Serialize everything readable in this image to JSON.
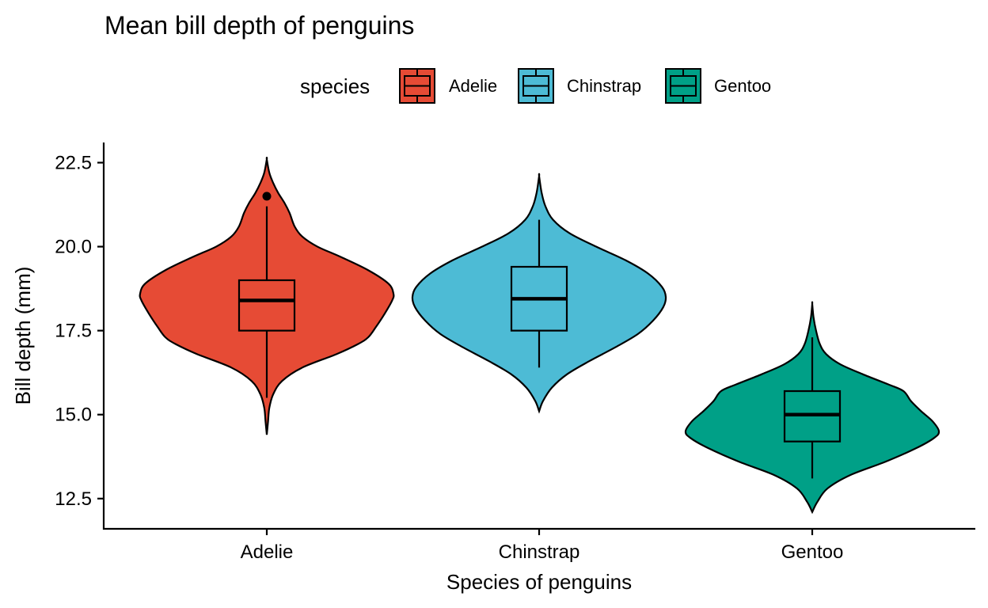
{
  "chart_data": {
    "type": "violin",
    "title": "Mean bill depth of penguins",
    "xlabel": "Species of penguins",
    "ylabel": "Bill depth (mm)",
    "ylim": [
      11.6,
      23.1
    ],
    "yticks": [
      12.5,
      15.0,
      17.5,
      20.0,
      22.5
    ],
    "ytick_labels": [
      "12.5",
      "15.0",
      "17.5",
      "20.0",
      "22.5"
    ],
    "categories": [
      "Adelie",
      "Chinstrap",
      "Gentoo"
    ],
    "legend": {
      "title": "species",
      "position": "top",
      "entries": [
        "Adelie",
        "Chinstrap",
        "Gentoo"
      ]
    },
    "series": [
      {
        "category": "Adelie",
        "color": "#E64B35",
        "box": {
          "whisker_low": 15.5,
          "q1": 17.5,
          "median": 18.4,
          "q3": 19.0,
          "whisker_high": 21.2
        },
        "outliers": [
          21.5
        ],
        "density": [
          [
            14.4,
            0.0
          ],
          [
            14.8,
            0.01
          ],
          [
            15.2,
            0.02
          ],
          [
            15.6,
            0.05
          ],
          [
            16.0,
            0.12
          ],
          [
            16.4,
            0.28
          ],
          [
            16.8,
            0.55
          ],
          [
            17.1,
            0.72
          ],
          [
            17.3,
            0.8
          ],
          [
            17.6,
            0.86
          ],
          [
            18.0,
            0.93
          ],
          [
            18.4,
            0.99
          ],
          [
            18.6,
            1.0
          ],
          [
            18.9,
            0.96
          ],
          [
            19.3,
            0.8
          ],
          [
            19.7,
            0.58
          ],
          [
            20.0,
            0.4
          ],
          [
            20.3,
            0.28
          ],
          [
            20.6,
            0.22
          ],
          [
            21.0,
            0.18
          ],
          [
            21.3,
            0.14
          ],
          [
            21.6,
            0.09
          ],
          [
            21.9,
            0.05
          ],
          [
            22.2,
            0.02
          ],
          [
            22.6,
            0.0
          ]
        ]
      },
      {
        "category": "Chinstrap",
        "color": "#4DBBD5",
        "box": {
          "whisker_low": 16.4,
          "q1": 17.5,
          "median": 18.45,
          "q3": 19.4,
          "whisker_high": 20.8
        },
        "outliers": [],
        "density": [
          [
            15.1,
            0.0
          ],
          [
            15.4,
            0.03
          ],
          [
            15.8,
            0.1
          ],
          [
            16.2,
            0.22
          ],
          [
            16.6,
            0.4
          ],
          [
            17.0,
            0.6
          ],
          [
            17.4,
            0.78
          ],
          [
            17.8,
            0.9
          ],
          [
            18.2,
            0.98
          ],
          [
            18.5,
            1.0
          ],
          [
            18.8,
            0.97
          ],
          [
            19.2,
            0.86
          ],
          [
            19.6,
            0.68
          ],
          [
            20.0,
            0.45
          ],
          [
            20.4,
            0.24
          ],
          [
            20.8,
            0.11
          ],
          [
            21.2,
            0.05
          ],
          [
            21.6,
            0.02
          ],
          [
            22.1,
            0.0
          ]
        ]
      },
      {
        "category": "Gentoo",
        "color": "#00A087",
        "box": {
          "whisker_low": 13.1,
          "q1": 14.2,
          "median": 15.0,
          "q3": 15.7,
          "whisker_high": 17.3
        },
        "outliers": [],
        "density": [
          [
            12.1,
            0.0
          ],
          [
            12.4,
            0.04
          ],
          [
            12.8,
            0.12
          ],
          [
            13.2,
            0.3
          ],
          [
            13.6,
            0.58
          ],
          [
            14.0,
            0.82
          ],
          [
            14.3,
            0.96
          ],
          [
            14.5,
            1.0
          ],
          [
            14.8,
            0.95
          ],
          [
            15.1,
            0.86
          ],
          [
            15.4,
            0.78
          ],
          [
            15.7,
            0.72
          ],
          [
            15.9,
            0.6
          ],
          [
            16.2,
            0.4
          ],
          [
            16.5,
            0.22
          ],
          [
            16.8,
            0.11
          ],
          [
            17.1,
            0.06
          ],
          [
            17.5,
            0.03
          ],
          [
            17.9,
            0.01
          ],
          [
            18.3,
            0.0
          ]
        ]
      }
    ]
  }
}
